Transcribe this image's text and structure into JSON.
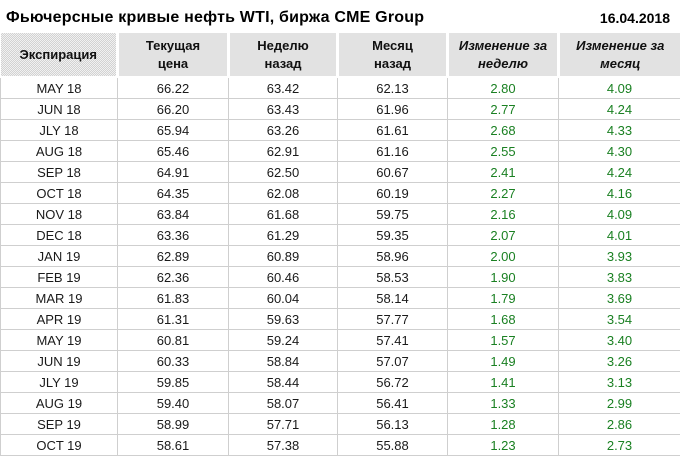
{
  "header": {
    "title": "Фьючерсные кривые нефть WTI, биржа CME Group",
    "date": "16.04.2018"
  },
  "colors": {
    "positive_change": "#1a8022",
    "grid_line": "#cfcfcf",
    "header_fill": "#e3e3e3",
    "text": "#1a1a1a"
  },
  "chart_data": {
    "type": "table",
    "title": "Фьючерсные кривые нефть WTI, биржа CME Group",
    "date": "16.04.2018",
    "columns": [
      "Экспирация",
      "Текущая цена",
      "Неделю назад",
      "Месяц назад",
      "Изменение за неделю",
      "Изменение за месяц"
    ],
    "column_headers_two_line": [
      [
        "Экспирация",
        ""
      ],
      [
        "Текущая",
        "цена"
      ],
      [
        "Неделю",
        "назад"
      ],
      [
        "Месяц",
        "назад"
      ],
      [
        "Изменение за",
        "неделю"
      ],
      [
        "Изменение за",
        "месяц"
      ]
    ],
    "rows": [
      [
        "MAY 18",
        "66.22",
        "63.42",
        "62.13",
        "2.80",
        "4.09"
      ],
      [
        "JUN 18",
        "66.20",
        "63.43",
        "61.96",
        "2.77",
        "4.24"
      ],
      [
        "JLY 18",
        "65.94",
        "63.26",
        "61.61",
        "2.68",
        "4.33"
      ],
      [
        "AUG 18",
        "65.46",
        "62.91",
        "61.16",
        "2.55",
        "4.30"
      ],
      [
        "SEP 18",
        "64.91",
        "62.50",
        "60.67",
        "2.41",
        "4.24"
      ],
      [
        "OCT 18",
        "64.35",
        "62.08",
        "60.19",
        "2.27",
        "4.16"
      ],
      [
        "NOV 18",
        "63.84",
        "61.68",
        "59.75",
        "2.16",
        "4.09"
      ],
      [
        "DEC 18",
        "63.36",
        "61.29",
        "59.35",
        "2.07",
        "4.01"
      ],
      [
        "JAN 19",
        "62.89",
        "60.89",
        "58.96",
        "2.00",
        "3.93"
      ],
      [
        "FEB 19",
        "62.36",
        "60.46",
        "58.53",
        "1.90",
        "3.83"
      ],
      [
        "MAR 19",
        "61.83",
        "60.04",
        "58.14",
        "1.79",
        "3.69"
      ],
      [
        "APR 19",
        "61.31",
        "59.63",
        "57.77",
        "1.68",
        "3.54"
      ],
      [
        "MAY 19",
        "60.81",
        "59.24",
        "57.41",
        "1.57",
        "3.40"
      ],
      [
        "JUN 19",
        "60.33",
        "58.84",
        "57.07",
        "1.49",
        "3.26"
      ],
      [
        "JLY 19",
        "59.85",
        "58.44",
        "56.72",
        "1.41",
        "3.13"
      ],
      [
        "AUG 19",
        "59.40",
        "58.07",
        "56.41",
        "1.33",
        "2.99"
      ],
      [
        "SEP 19",
        "58.99",
        "57.71",
        "56.13",
        "1.28",
        "2.86"
      ],
      [
        "OCT 19",
        "58.61",
        "57.38",
        "55.88",
        "1.23",
        "2.73"
      ]
    ],
    "value_columns_color_green": [
      4,
      5
    ],
    "layout": {
      "grid": true,
      "header_background": "dithered-gray",
      "text_align": "center"
    }
  }
}
